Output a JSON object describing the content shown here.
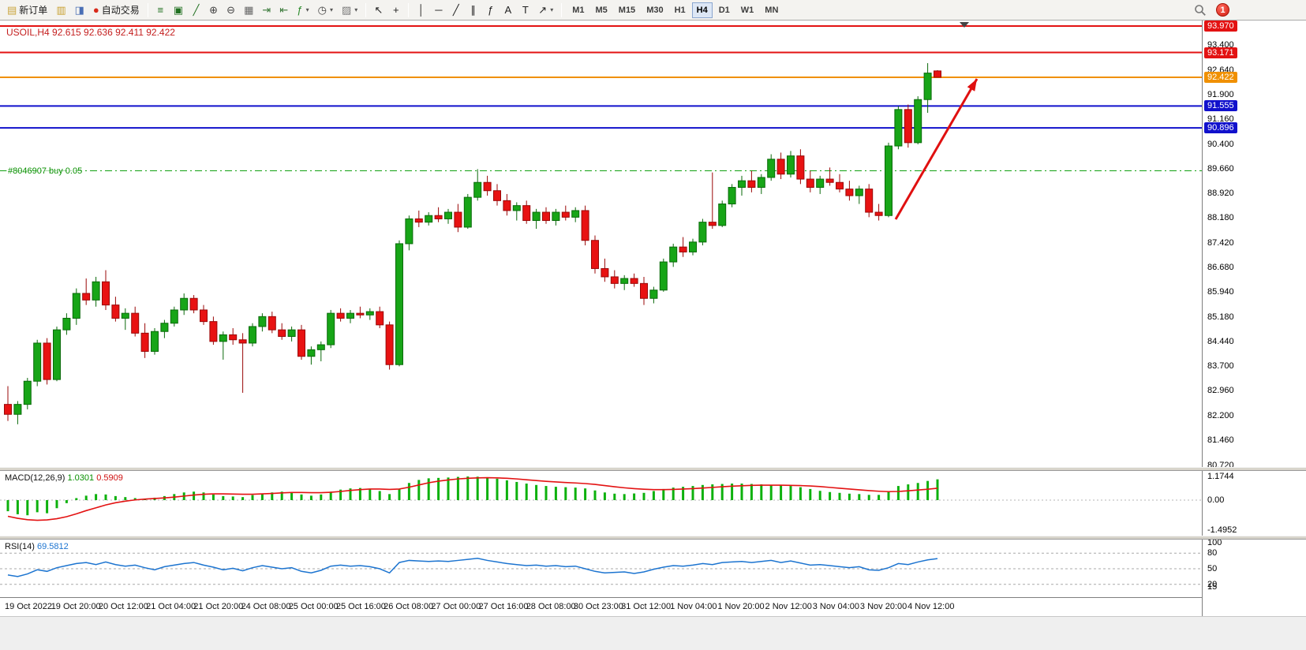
{
  "toolbar": {
    "items": [
      {
        "type": "button",
        "name": "new-order-button",
        "icon": "new-order-icon",
        "glyph": "▤",
        "color": "#caa53d",
        "label": "新订单"
      },
      {
        "type": "button",
        "name": "market-watch-button",
        "icon": "market-watch-icon",
        "glyph": "▥",
        "color": "#c8a030"
      },
      {
        "type": "button",
        "name": "navigator-button",
        "icon": "navigator-icon",
        "glyph": "◨",
        "color": "#4a6fb5"
      },
      {
        "type": "button",
        "name": "auto-trading-button",
        "icon": "autotrading-status-icon",
        "glyph": "●",
        "color": "#d82a1a",
        "label": "自动交易"
      },
      {
        "type": "sep"
      },
      {
        "type": "button",
        "name": "bar-chart-button",
        "icon": "bar-chart-icon",
        "glyph": "≡",
        "color": "#207020"
      },
      {
        "type": "button",
        "name": "candlestick-chart-button",
        "icon": "candlestick-icon",
        "glyph": "▣",
        "color": "#207020"
      },
      {
        "type": "button",
        "name": "line-chart-button",
        "icon": "line-chart-icon",
        "glyph": "╱",
        "color": "#207020"
      },
      {
        "type": "button",
        "name": "zoom-in-button",
        "icon": "zoom-in-icon",
        "glyph": "⊕",
        "color": "#444444"
      },
      {
        "type": "button",
        "name": "zoom-out-button",
        "icon": "zoom-out-icon",
        "glyph": "⊖",
        "color": "#444444"
      },
      {
        "type": "button",
        "name": "tile-windows-button",
        "icon": "tile-windows-icon",
        "glyph": "▦",
        "color": "#666666"
      },
      {
        "type": "button",
        "name": "auto-scroll-button",
        "icon": "auto-scroll-icon",
        "glyph": "⇥",
        "color": "#3a7a3a"
      },
      {
        "type": "button",
        "name": "chart-shift-button",
        "icon": "chart-shift-icon",
        "glyph": "⇤",
        "color": "#3a7a3a"
      },
      {
        "type": "button",
        "name": "indicators-button",
        "icon": "indicators-icon",
        "glyph": "ƒ",
        "color": "#2a8a2a",
        "caret": true
      },
      {
        "type": "button",
        "name": "periods-button",
        "icon": "periods-clock-icon",
        "glyph": "◷",
        "color": "#444444",
        "caret": true
      },
      {
        "type": "button",
        "name": "templates-button",
        "icon": "templates-icon",
        "glyph": "▨",
        "color": "#777777",
        "caret": true
      },
      {
        "type": "sep"
      },
      {
        "type": "button",
        "name": "cursor-button",
        "icon": "cursor-arrow-icon",
        "glyph": "↖",
        "color": "#222222"
      },
      {
        "type": "button",
        "name": "crosshair-button",
        "icon": "crosshair-icon",
        "glyph": "+",
        "color": "#222222"
      },
      {
        "type": "sep"
      },
      {
        "type": "button",
        "name": "vertical-line-button",
        "icon": "vertical-line-icon",
        "glyph": "│",
        "color": "#222222"
      },
      {
        "type": "button",
        "name": "horizontal-line-button",
        "icon": "horizontal-line-icon",
        "glyph": "─",
        "color": "#222222"
      },
      {
        "type": "button",
        "name": "trendline-button",
        "icon": "trendline-icon",
        "glyph": "╱",
        "color": "#222222"
      },
      {
        "type": "button",
        "name": "equidistant-channel-button",
        "icon": "channel-icon",
        "glyph": "∥",
        "color": "#222222"
      },
      {
        "type": "button",
        "name": "fibonacci-button",
        "icon": "fibonacci-icon",
        "glyph": "ƒ",
        "color": "#222222"
      },
      {
        "type": "button",
        "name": "text-button",
        "icon": "text-icon",
        "glyph": "A",
        "color": "#222222"
      },
      {
        "type": "button",
        "name": "label-button",
        "icon": "label-icon",
        "glyph": "T",
        "color": "#222222"
      },
      {
        "type": "button",
        "name": "arrows-button",
        "icon": "arrow-object-icon",
        "glyph": "↗",
        "color": "#222222",
        "caret": true
      },
      {
        "type": "sep"
      }
    ],
    "timeframes": [
      "M1",
      "M5",
      "M15",
      "M30",
      "H1",
      "H4",
      "D1",
      "W1",
      "MN"
    ],
    "active_timeframe": "H4",
    "notification_count": "1"
  },
  "chart": {
    "quote": "USOIL,H4 92.615 92.636 92.411 92.422",
    "order_label": "#8046907 buy 0.05"
  },
  "macd": {
    "name": "MACD(12,26,9)",
    "main": "1.0301",
    "signal": "0.5909",
    "scale": [
      "1.1744",
      "0.00",
      "-1.4952"
    ]
  },
  "rsi": {
    "name": "RSI(14)",
    "value": "69.5812",
    "scale": [
      "100",
      "80",
      "50",
      "20",
      "15"
    ],
    "levels": [
      80,
      50,
      20
    ]
  },
  "price_axis": {
    "labels": [
      "93.400",
      "92.640",
      "91.900",
      "91.160",
      "90.400",
      "89.660",
      "88.920",
      "88.180",
      "87.420",
      "86.680",
      "85.940",
      "85.180",
      "84.440",
      "83.700",
      "82.960",
      "82.200",
      "81.460",
      "80.720"
    ]
  },
  "time_axis": {
    "labels": [
      "19 Oct 2022",
      "19 Oct 20:00",
      "20 Oct 12:00",
      "21 Oct 04:00",
      "21 Oct 20:00",
      "24 Oct 08:00",
      "25 Oct 00:00",
      "25 Oct 16:00",
      "26 Oct 08:00",
      "27 Oct 00:00",
      "27 Oct 16:00",
      "28 Oct 08:00",
      "30 Oct 23:00",
      "31 Oct 12:00",
      "1 Nov 04:00",
      "1 Nov 20:00",
      "2 Nov 12:00",
      "3 Nov 04:00",
      "3 Nov 20:00",
      "4 Nov 12:00"
    ]
  },
  "chart_data": {
    "type": "candlestick",
    "symbol": "USOIL",
    "timeframe": "H4",
    "y_axis_range": [
      80.72,
      93.97
    ],
    "bull_color": "#17a517",
    "bull_edge": "#0a6a0a",
    "bear_color": "#e81212",
    "bear_edge": "#9a0808",
    "levels": [
      {
        "price": 93.97,
        "color": "#e31212",
        "width": 2,
        "tag": "93.970"
      },
      {
        "price": 93.171,
        "color": "#e31212",
        "width": 2,
        "tag": "93.171"
      },
      {
        "price": 92.422,
        "color": "#f09000",
        "width": 2,
        "tag": "92.422"
      },
      {
        "price": 91.555,
        "color": "#1111cc",
        "width": 2,
        "tag": "91.555"
      },
      {
        "price": 90.896,
        "color": "#1111cc",
        "width": 2,
        "tag": "90.896"
      }
    ],
    "order_line": {
      "price": 89.6,
      "color": "#10a010",
      "label": "#8046907 buy 0.05"
    },
    "arrow": {
      "from": [
        1135,
        252
      ],
      "to": [
        1238,
        74
      ],
      "color": "#e01010"
    },
    "ohlc": [
      [
        82.55,
        83.1,
        82.05,
        82.25
      ],
      [
        82.25,
        82.65,
        81.95,
        82.55
      ],
      [
        82.55,
        83.35,
        82.4,
        83.25
      ],
      [
        83.25,
        84.5,
        83.1,
        84.4
      ],
      [
        84.4,
        84.55,
        83.15,
        83.3
      ],
      [
        83.3,
        84.9,
        83.25,
        84.8
      ],
      [
        84.8,
        85.3,
        84.65,
        85.15
      ],
      [
        85.15,
        86.05,
        84.95,
        85.9
      ],
      [
        85.9,
        86.35,
        85.55,
        85.7
      ],
      [
        85.7,
        86.4,
        85.5,
        86.25
      ],
      [
        86.25,
        86.6,
        85.4,
        85.55
      ],
      [
        85.55,
        85.8,
        85.05,
        85.15
      ],
      [
        85.15,
        85.45,
        84.8,
        85.3
      ],
      [
        85.3,
        85.5,
        84.6,
        84.7
      ],
      [
        84.7,
        85.0,
        83.95,
        84.15
      ],
      [
        84.15,
        84.85,
        84.05,
        84.75
      ],
      [
        84.75,
        85.1,
        84.55,
        85.0
      ],
      [
        85.0,
        85.5,
        84.9,
        85.4
      ],
      [
        85.4,
        85.9,
        85.25,
        85.75
      ],
      [
        85.75,
        85.85,
        85.3,
        85.4
      ],
      [
        85.4,
        85.55,
        84.95,
        85.05
      ],
      [
        85.05,
        85.2,
        84.35,
        84.45
      ],
      [
        84.45,
        84.75,
        83.9,
        84.65
      ],
      [
        84.65,
        84.85,
        84.35,
        84.5
      ],
      [
        84.5,
        84.7,
        82.9,
        84.4
      ],
      [
        84.4,
        85.0,
        84.3,
        84.9
      ],
      [
        84.9,
        85.3,
        84.75,
        85.2
      ],
      [
        85.2,
        85.35,
        84.7,
        84.8
      ],
      [
        84.8,
        85.0,
        84.5,
        84.6
      ],
      [
        84.6,
        84.9,
        84.45,
        84.8
      ],
      [
        84.8,
        84.95,
        83.9,
        84.0
      ],
      [
        84.0,
        84.3,
        83.75,
        84.2
      ],
      [
        84.2,
        84.45,
        83.85,
        84.35
      ],
      [
        84.35,
        85.4,
        84.25,
        85.3
      ],
      [
        85.3,
        85.45,
        85.05,
        85.15
      ],
      [
        85.15,
        85.4,
        85.0,
        85.3
      ],
      [
        85.3,
        85.5,
        85.15,
        85.25
      ],
      [
        85.25,
        85.45,
        85.1,
        85.35
      ],
      [
        85.35,
        85.5,
        84.85,
        84.95
      ],
      [
        84.95,
        85.05,
        83.6,
        83.75
      ],
      [
        83.75,
        87.5,
        83.7,
        87.4
      ],
      [
        87.4,
        88.25,
        87.2,
        88.15
      ],
      [
        88.15,
        88.4,
        87.9,
        88.05
      ],
      [
        88.05,
        88.35,
        87.95,
        88.25
      ],
      [
        88.25,
        88.5,
        88.05,
        88.15
      ],
      [
        88.15,
        88.45,
        88.0,
        88.35
      ],
      [
        88.35,
        88.6,
        87.75,
        87.9
      ],
      [
        87.9,
        88.9,
        87.85,
        88.8
      ],
      [
        88.8,
        89.65,
        88.7,
        89.25
      ],
      [
        89.25,
        89.45,
        88.85,
        89.0
      ],
      [
        89.0,
        89.2,
        88.55,
        88.7
      ],
      [
        88.7,
        88.9,
        88.25,
        88.4
      ],
      [
        88.4,
        88.65,
        88.1,
        88.55
      ],
      [
        88.55,
        88.7,
        88.0,
        88.1
      ],
      [
        88.1,
        88.45,
        87.85,
        88.35
      ],
      [
        88.35,
        88.5,
        88.0,
        88.1
      ],
      [
        88.1,
        88.45,
        87.95,
        88.35
      ],
      [
        88.35,
        88.55,
        88.1,
        88.2
      ],
      [
        88.2,
        88.5,
        88.05,
        88.4
      ],
      [
        88.4,
        88.55,
        87.35,
        87.5
      ],
      [
        87.5,
        87.65,
        86.5,
        86.65
      ],
      [
        86.65,
        86.95,
        86.25,
        86.4
      ],
      [
        86.4,
        86.6,
        86.05,
        86.2
      ],
      [
        86.2,
        86.45,
        86.0,
        86.35
      ],
      [
        86.35,
        86.5,
        86.1,
        86.2
      ],
      [
        86.2,
        86.4,
        85.55,
        85.75
      ],
      [
        85.75,
        86.1,
        85.6,
        86.0
      ],
      [
        86.0,
        86.95,
        85.95,
        86.85
      ],
      [
        86.85,
        87.4,
        86.7,
        87.3
      ],
      [
        87.3,
        87.6,
        87.0,
        87.15
      ],
      [
        87.15,
        87.55,
        87.05,
        87.45
      ],
      [
        87.45,
        88.15,
        87.35,
        88.05
      ],
      [
        88.05,
        89.55,
        87.85,
        87.95
      ],
      [
        87.95,
        88.7,
        87.9,
        88.6
      ],
      [
        88.6,
        89.2,
        88.5,
        89.1
      ],
      [
        89.1,
        89.45,
        88.85,
        89.3
      ],
      [
        89.3,
        89.6,
        88.95,
        89.1
      ],
      [
        89.1,
        89.5,
        88.9,
        89.4
      ],
      [
        89.4,
        90.1,
        89.3,
        89.95
      ],
      [
        89.95,
        90.15,
        89.35,
        89.5
      ],
      [
        89.5,
        90.2,
        89.4,
        90.05
      ],
      [
        90.05,
        90.25,
        89.2,
        89.35
      ],
      [
        89.35,
        89.6,
        88.95,
        89.1
      ],
      [
        89.1,
        89.45,
        88.9,
        89.35
      ],
      [
        89.35,
        89.7,
        89.15,
        89.25
      ],
      [
        89.25,
        89.5,
        88.95,
        89.05
      ],
      [
        89.05,
        89.3,
        88.7,
        88.85
      ],
      [
        88.85,
        89.15,
        88.6,
        89.05
      ],
      [
        89.05,
        89.2,
        88.2,
        88.35
      ],
      [
        88.35,
        88.6,
        88.1,
        88.25
      ],
      [
        88.25,
        90.45,
        88.2,
        90.35
      ],
      [
        90.35,
        91.55,
        90.25,
        91.45
      ],
      [
        91.45,
        91.6,
        90.3,
        90.45
      ],
      [
        90.45,
        91.85,
        90.4,
        91.75
      ],
      [
        91.75,
        92.85,
        91.35,
        92.55
      ],
      [
        92.615,
        92.636,
        92.411,
        92.422
      ]
    ],
    "macd_histogram": [
      -0.55,
      -0.7,
      -0.75,
      -0.6,
      -0.65,
      -0.4,
      -0.15,
      0.1,
      0.22,
      0.3,
      0.28,
      0.2,
      0.15,
      0.1,
      0.05,
      0.12,
      0.2,
      0.3,
      0.38,
      0.42,
      0.38,
      0.28,
      0.2,
      0.18,
      0.15,
      0.25,
      0.33,
      0.38,
      0.42,
      0.38,
      0.28,
      0.22,
      0.28,
      0.42,
      0.52,
      0.58,
      0.6,
      0.55,
      0.45,
      0.3,
      0.55,
      0.85,
      1.0,
      1.08,
      1.1,
      1.12,
      1.15,
      1.17,
      1.16,
      1.12,
      1.06,
      0.98,
      0.9,
      0.82,
      0.75,
      0.7,
      0.66,
      0.64,
      0.62,
      0.58,
      0.48,
      0.38,
      0.32,
      0.3,
      0.33,
      0.36,
      0.45,
      0.55,
      0.62,
      0.66,
      0.7,
      0.75,
      0.78,
      0.8,
      0.82,
      0.82,
      0.8,
      0.78,
      0.76,
      0.72,
      0.7,
      0.64,
      0.55,
      0.46,
      0.4,
      0.36,
      0.32,
      0.3,
      0.26,
      0.26,
      0.45,
      0.7,
      0.78,
      0.85,
      0.95,
      1.03
    ],
    "macd_signal": [
      -0.8,
      -0.9,
      -0.97,
      -1.0,
      -0.98,
      -0.92,
      -0.82,
      -0.68,
      -0.52,
      -0.38,
      -0.24,
      -0.13,
      -0.05,
      0.01,
      0.05,
      0.08,
      0.11,
      0.15,
      0.2,
      0.25,
      0.29,
      0.31,
      0.31,
      0.3,
      0.29,
      0.29,
      0.31,
      0.33,
      0.36,
      0.38,
      0.38,
      0.37,
      0.37,
      0.39,
      0.43,
      0.48,
      0.52,
      0.55,
      0.55,
      0.53,
      0.55,
      0.64,
      0.75,
      0.86,
      0.94,
      1.0,
      1.05,
      1.08,
      1.1,
      1.11,
      1.1,
      1.08,
      1.05,
      1.01,
      0.97,
      0.93,
      0.9,
      0.87,
      0.85,
      0.82,
      0.78,
      0.72,
      0.66,
      0.61,
      0.57,
      0.54,
      0.52,
      0.52,
      0.53,
      0.55,
      0.57,
      0.6,
      0.63,
      0.66,
      0.69,
      0.71,
      0.73,
      0.74,
      0.74,
      0.74,
      0.73,
      0.72,
      0.7,
      0.67,
      0.63,
      0.59,
      0.55,
      0.51,
      0.47,
      0.44,
      0.42,
      0.43,
      0.46,
      0.5,
      0.54,
      0.59
    ],
    "rsi_series": [
      38,
      35,
      40,
      48,
      45,
      52,
      56,
      60,
      62,
      58,
      63,
      58,
      55,
      57,
      52,
      48,
      54,
      57,
      60,
      62,
      57,
      53,
      48,
      51,
      46,
      52,
      56,
      53,
      50,
      52,
      45,
      42,
      47,
      55,
      57,
      55,
      56,
      54,
      50,
      42,
      62,
      66,
      65,
      64,
      65,
      64,
      66,
      68,
      70,
      66,
      63,
      60,
      58,
      56,
      57,
      55,
      56,
      54,
      55,
      50,
      45,
      42,
      43,
      44,
      41,
      44,
      49,
      53,
      56,
      55,
      57,
      60,
      58,
      62,
      63,
      64,
      62,
      64,
      66,
      62,
      65,
      61,
      57,
      58,
      56,
      54,
      52,
      54,
      48,
      47,
      52,
      60,
      58,
      63,
      67,
      69.58
    ]
  }
}
